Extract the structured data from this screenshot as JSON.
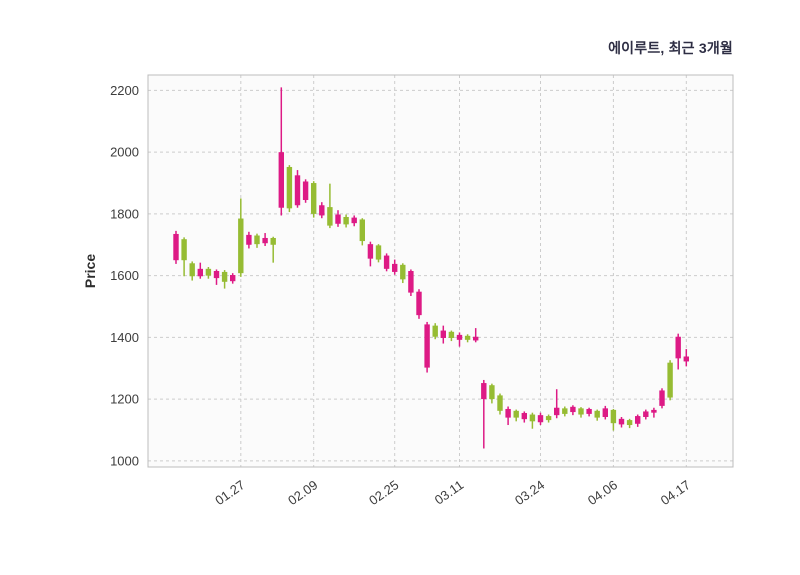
{
  "chart_data": {
    "type": "candlestick",
    "title": "에이루트, 최근 3개월",
    "ylabel": "Price",
    "ylim": [
      980,
      2250
    ],
    "y_ticks": [
      1000,
      1200,
      1400,
      1600,
      1800,
      2000,
      2200
    ],
    "x_tick_indices": [
      8,
      17,
      27,
      35,
      45,
      54,
      63
    ],
    "x_tick_labels": [
      "01.27",
      "02.09",
      "02.25",
      "03.11",
      "03.24",
      "04.06",
      "04.17"
    ],
    "grid": "dashed",
    "legend_position": "none",
    "candles_ohlc": [
      [
        1650,
        1745,
        1638,
        1735
      ],
      [
        1718,
        1724,
        1598,
        1650
      ],
      [
        1640,
        1646,
        1584,
        1598
      ],
      [
        1598,
        1642,
        1590,
        1622
      ],
      [
        1622,
        1628,
        1590,
        1600
      ],
      [
        1592,
        1620,
        1570,
        1615
      ],
      [
        1612,
        1618,
        1558,
        1580
      ],
      [
        1582,
        1608,
        1574,
        1602
      ],
      [
        1785,
        1850,
        1596,
        1608
      ],
      [
        1700,
        1742,
        1688,
        1732
      ],
      [
        1730,
        1736,
        1690,
        1702
      ],
      [
        1705,
        1738,
        1696,
        1722
      ],
      [
        1722,
        1726,
        1642,
        1700
      ],
      [
        1820,
        2210,
        1795,
        2000
      ],
      [
        1952,
        1958,
        1806,
        1818
      ],
      [
        1828,
        1942,
        1820,
        1925
      ],
      [
        1845,
        1912,
        1836,
        1905
      ],
      [
        1900,
        1906,
        1788,
        1800
      ],
      [
        1795,
        1838,
        1786,
        1828
      ],
      [
        1822,
        1898,
        1754,
        1762
      ],
      [
        1768,
        1812,
        1758,
        1798
      ],
      [
        1790,
        1798,
        1756,
        1766
      ],
      [
        1770,
        1795,
        1760,
        1788
      ],
      [
        1782,
        1786,
        1698,
        1712
      ],
      [
        1655,
        1710,
        1630,
        1702
      ],
      [
        1698,
        1702,
        1643,
        1652
      ],
      [
        1622,
        1672,
        1614,
        1665
      ],
      [
        1612,
        1652,
        1603,
        1638
      ],
      [
        1635,
        1640,
        1576,
        1588
      ],
      [
        1545,
        1620,
        1534,
        1615
      ],
      [
        1472,
        1556,
        1460,
        1548
      ],
      [
        1302,
        1450,
        1286,
        1442
      ],
      [
        1438,
        1446,
        1394,
        1402
      ],
      [
        1398,
        1438,
        1380,
        1422
      ],
      [
        1418,
        1422,
        1388,
        1398
      ],
      [
        1392,
        1416,
        1370,
        1408
      ],
      [
        1405,
        1410,
        1384,
        1392
      ],
      [
        1390,
        1430,
        1384,
        1402
      ],
      [
        1200,
        1262,
        1040,
        1252
      ],
      [
        1245,
        1250,
        1186,
        1200
      ],
      [
        1212,
        1218,
        1150,
        1162
      ],
      [
        1140,
        1176,
        1116,
        1168
      ],
      [
        1162,
        1166,
        1128,
        1140
      ],
      [
        1135,
        1160,
        1124,
        1155
      ],
      [
        1150,
        1156,
        1104,
        1128
      ],
      [
        1125,
        1156,
        1116,
        1148
      ],
      [
        1145,
        1150,
        1124,
        1132
      ],
      [
        1148,
        1232,
        1138,
        1172
      ],
      [
        1170,
        1176,
        1144,
        1152
      ],
      [
        1158,
        1180,
        1148,
        1175
      ],
      [
        1170,
        1174,
        1140,
        1150
      ],
      [
        1152,
        1172,
        1144,
        1168
      ],
      [
        1162,
        1166,
        1130,
        1140
      ],
      [
        1142,
        1178,
        1134,
        1170
      ],
      [
        1165,
        1168,
        1098,
        1122
      ],
      [
        1118,
        1142,
        1108,
        1136
      ],
      [
        1132,
        1136,
        1106,
        1116
      ],
      [
        1120,
        1150,
        1110,
        1145
      ],
      [
        1142,
        1166,
        1134,
        1160
      ],
      [
        1156,
        1172,
        1140,
        1165
      ],
      [
        1178,
        1235,
        1170,
        1228
      ],
      [
        1318,
        1326,
        1196,
        1205
      ],
      [
        1332,
        1412,
        1296,
        1402
      ],
      [
        1322,
        1362,
        1306,
        1338
      ]
    ]
  },
  "colors": {
    "up_candle": "#dd1a85",
    "down_candle": "#96bc33",
    "grid_line": "#cccccc",
    "plot_border": "#bdbdbd",
    "plot_background": "#fbfbfb",
    "figure_background": "#ffffff",
    "tick_text": "#3d3d3d",
    "title_text": "#2e2e44"
  }
}
